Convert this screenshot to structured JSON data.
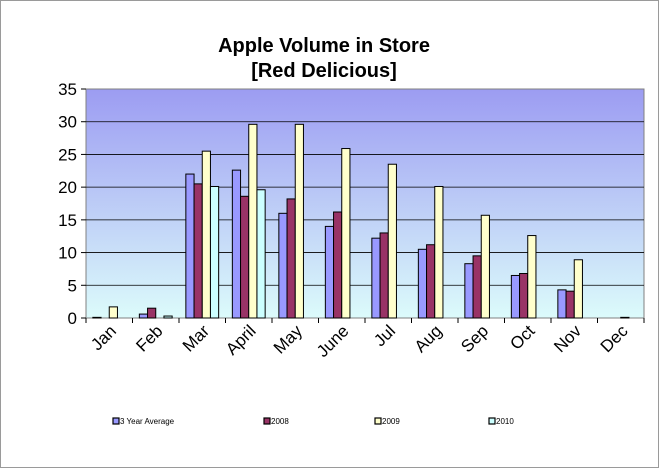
{
  "chart_data": {
    "type": "bar",
    "title": "Apple Volume in Store",
    "subtitle": "[Red Delicious]",
    "xlabel": "",
    "ylabel": "",
    "ylim": [
      0,
      35
    ],
    "yticks": [
      0,
      5,
      10,
      15,
      20,
      25,
      30,
      35
    ],
    "grid": true,
    "legend_position": "bottom",
    "categories": [
      "Jan",
      "Feb",
      "Mar",
      "April",
      "May",
      "June",
      "Jul",
      "Aug",
      "Sep",
      "Oct",
      "Nov",
      "Dec"
    ],
    "series": [
      {
        "name": "3 Year Average",
        "color": "#9999FF",
        "values": [
          0.1,
          0.6,
          22.0,
          22.6,
          16.0,
          14.0,
          12.2,
          10.5,
          8.3,
          6.5,
          4.3,
          0
        ]
      },
      {
        "name": "2008",
        "color": "#993366",
        "values": [
          0,
          1.5,
          20.5,
          18.6,
          18.2,
          16.2,
          13.0,
          11.2,
          9.5,
          6.8,
          4.1,
          0
        ]
      },
      {
        "name": "2009",
        "color": "#FFFFCC",
        "values": [
          1.7,
          0,
          25.5,
          29.6,
          29.6,
          25.9,
          23.5,
          20.1,
          15.7,
          12.6,
          8.9,
          0.1
        ]
      },
      {
        "name": "2010",
        "color": "#CCFFFF",
        "values": [
          0,
          0.3,
          20.1,
          19.6,
          null,
          null,
          null,
          null,
          null,
          null,
          null,
          null
        ]
      }
    ]
  }
}
